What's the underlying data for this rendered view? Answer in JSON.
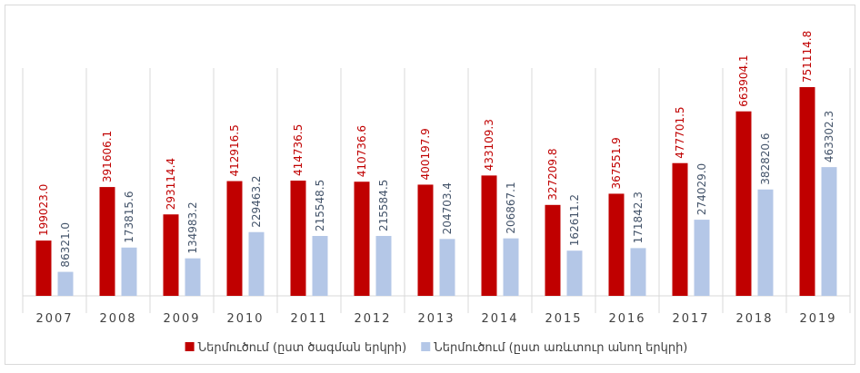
{
  "chart_data": {
    "type": "bar",
    "categories": [
      "2007",
      "2008",
      "2009",
      "2010",
      "2011",
      "2012",
      "2013",
      "2014",
      "2015",
      "2016",
      "2017",
      "2018",
      "2019"
    ],
    "series": [
      {
        "name": "Ներմուծում  (ըստ ծագման երկրի)",
        "color": "#c00000",
        "values": [
          199023.0,
          391606.1,
          293114.4,
          412916.5,
          414736.5,
          410736.6,
          400197.9,
          433109.3,
          327209.8,
          367551.9,
          477701.5,
          663904.1,
          751114.8
        ],
        "value_labels": [
          "199023.0",
          "391606.1",
          "293114.4",
          "412916.5",
          "414736.5",
          "410736.6",
          "400197.9",
          "433109.3",
          "327209.8",
          "367551.9",
          "477701.5",
          "663904.1",
          "751114.8"
        ]
      },
      {
        "name": "Ներմուծում  (ըստ առևտուր անող երկրի)",
        "color": "#b4c7e7",
        "values": [
          86321.0,
          173815.6,
          134983.2,
          229463.2,
          215548.5,
          215584.5,
          204703.4,
          206867.1,
          162611.2,
          171842.3,
          274029.0,
          382820.6,
          463302.3
        ],
        "value_labels": [
          "86321.0",
          "173815.6",
          "134983.2",
          "229463.2",
          "215548.5",
          "215584.5",
          "204703.4",
          "206867.1",
          "162611.2",
          "171842.3",
          "274029.0",
          "382820.6",
          "463302.3"
        ]
      }
    ],
    "legend": "bottom"
  }
}
